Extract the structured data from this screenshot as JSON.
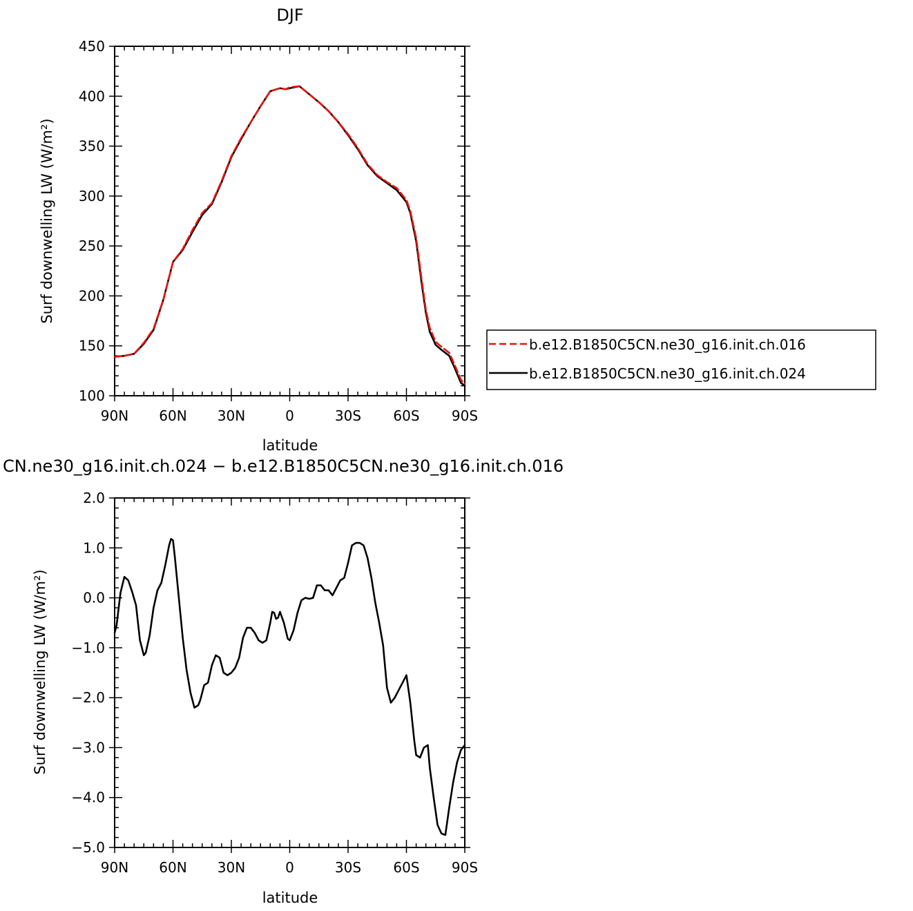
{
  "colors": {
    "series_016": "#e8120c",
    "series_024": "#000000"
  },
  "chart_data": [
    {
      "type": "line",
      "title": "DJF",
      "xlabel": "latitude",
      "ylabel": "Surf downwelling LW (W/m²)",
      "xlim": [
        90,
        -90
      ],
      "ylim": [
        100,
        450
      ],
      "x_ticks": [
        90,
        60,
        30,
        0,
        -30,
        -60,
        -90
      ],
      "x_tick_labels": [
        "90N",
        "60N",
        "30N",
        "0",
        "30S",
        "60S",
        "90S"
      ],
      "y_ticks": [
        100,
        150,
        200,
        250,
        300,
        350,
        400,
        450
      ],
      "y_tick_labels": [
        "100",
        "150",
        "200",
        "250",
        "300",
        "350",
        "400",
        "450"
      ],
      "legend_position": "right",
      "series": [
        {
          "name": "b.e12.B1850C5CN.ne30_g16.init.ch.016",
          "style": "dashed",
          "x": [
            90,
            85,
            80,
            75,
            70,
            65,
            60,
            55,
            50,
            45,
            40,
            35,
            30,
            25,
            20,
            15,
            10,
            5,
            2,
            0,
            -5,
            -10,
            -15,
            -20,
            -25,
            -30,
            -35,
            -40,
            -45,
            -50,
            -55,
            -60,
            -62,
            -65,
            -68,
            -70,
            -72,
            -75,
            -78,
            -80,
            -82,
            -85,
            -88,
            -90
          ],
          "y": [
            139,
            140,
            142,
            153,
            167,
            196,
            234,
            247,
            266,
            283,
            293,
            315,
            340,
            358,
            374,
            390,
            405,
            408,
            407,
            409,
            410,
            402,
            394,
            385,
            374,
            362,
            348,
            332,
            321,
            314,
            308,
            296,
            285,
            258,
            214,
            186,
            168,
            154,
            149,
            146,
            143,
            130,
            116,
            112
          ]
        },
        {
          "name": "b.e12.B1850C5CN.ne30_g16.init.ch.024",
          "style": "solid",
          "x": [
            90,
            85,
            80,
            75,
            70,
            65,
            60,
            55,
            50,
            45,
            40,
            35,
            30,
            25,
            20,
            15,
            10,
            5,
            2,
            0,
            -5,
            -10,
            -15,
            -20,
            -25,
            -30,
            -35,
            -40,
            -45,
            -50,
            -55,
            -60,
            -62,
            -65,
            -68,
            -70,
            -72,
            -75,
            -78,
            -80,
            -82,
            -85,
            -88,
            -90
          ],
          "y": [
            139,
            140,
            142,
            152,
            166,
            196,
            234,
            246,
            264,
            281,
            292,
            314,
            339,
            357,
            374,
            390,
            405,
            408,
            407,
            408,
            410,
            402,
            394,
            385,
            374,
            361,
            347,
            331,
            320,
            313,
            306,
            294,
            283,
            255,
            210,
            183,
            164,
            151,
            146,
            143,
            140,
            127,
            113,
            110
          ]
        }
      ]
    },
    {
      "type": "line",
      "title": "CN.ne30_g16.init.ch.024 − b.e12.B1850C5CN.ne30_g16.init.ch.016",
      "xlabel": "latitude",
      "ylabel": "Surf downwelling LW (W/m²)",
      "xlim": [
        90,
        -90
      ],
      "ylim": [
        -5,
        2
      ],
      "x_ticks": [
        90,
        60,
        30,
        0,
        -30,
        -60,
        -90
      ],
      "x_tick_labels": [
        "90N",
        "60N",
        "30N",
        "0",
        "30S",
        "60S",
        "90S"
      ],
      "y_ticks": [
        -5,
        -4,
        -3,
        -2,
        -1,
        0,
        1,
        2
      ],
      "y_tick_labels": [
        "−5.0",
        "−4.0",
        "−3.0",
        "−2.0",
        "−1.0",
        "0.0",
        "1.0",
        "2.0"
      ],
      "series": [
        {
          "style": "solid",
          "x": [
            90,
            89,
            87,
            85,
            83,
            81,
            79,
            77,
            75,
            74,
            72,
            70,
            68,
            66,
            64,
            62,
            61,
            60,
            59,
            57,
            55,
            53,
            51,
            49,
            47,
            46,
            44,
            42,
            40,
            38,
            36,
            34,
            32,
            30,
            28,
            26,
            24,
            22,
            20,
            18,
            16,
            14,
            12,
            10,
            9,
            8,
            7,
            6,
            5,
            3,
            1,
            0,
            -2,
            -4,
            -6,
            -8,
            -10,
            -12,
            -14,
            -16,
            -18,
            -20,
            -22,
            -24,
            -26,
            -28,
            -30,
            -32,
            -34,
            -36,
            -38,
            -40,
            -42,
            -44,
            -46,
            -48,
            -50,
            -52,
            -54,
            -56,
            -58,
            -60,
            -62,
            -64,
            -65,
            -67,
            -69,
            -71,
            -72,
            -74,
            -76,
            -78,
            -80,
            -82,
            -84,
            -86,
            -88,
            -90
          ],
          "y": [
            -0.7,
            -0.55,
            0.1,
            0.42,
            0.35,
            0.12,
            -0.15,
            -0.85,
            -1.15,
            -1.1,
            -0.75,
            -0.2,
            0.15,
            0.3,
            0.65,
            1.05,
            1.18,
            1.15,
            0.8,
            0.0,
            -0.8,
            -1.45,
            -1.9,
            -2.2,
            -2.15,
            -2.05,
            -1.75,
            -1.7,
            -1.35,
            -1.15,
            -1.2,
            -1.5,
            -1.55,
            -1.5,
            -1.4,
            -1.2,
            -0.8,
            -0.6,
            -0.6,
            -0.7,
            -0.85,
            -0.9,
            -0.85,
            -0.5,
            -0.28,
            -0.3,
            -0.42,
            -0.4,
            -0.28,
            -0.5,
            -0.82,
            -0.85,
            -0.65,
            -0.3,
            -0.05,
            0.0,
            -0.02,
            0.0,
            0.25,
            0.25,
            0.15,
            0.15,
            0.05,
            0.2,
            0.35,
            0.4,
            0.7,
            1.05,
            1.1,
            1.1,
            1.05,
            0.8,
            0.4,
            -0.1,
            -0.5,
            -0.95,
            -1.8,
            -2.1,
            -2.0,
            -1.85,
            -1.7,
            -1.55,
            -2.1,
            -2.85,
            -3.15,
            -3.2,
            -3.0,
            -2.95,
            -3.4,
            -4.0,
            -4.55,
            -4.72,
            -4.75,
            -4.2,
            -3.7,
            -3.3,
            -3.05,
            -2.95
          ]
        }
      ]
    }
  ]
}
